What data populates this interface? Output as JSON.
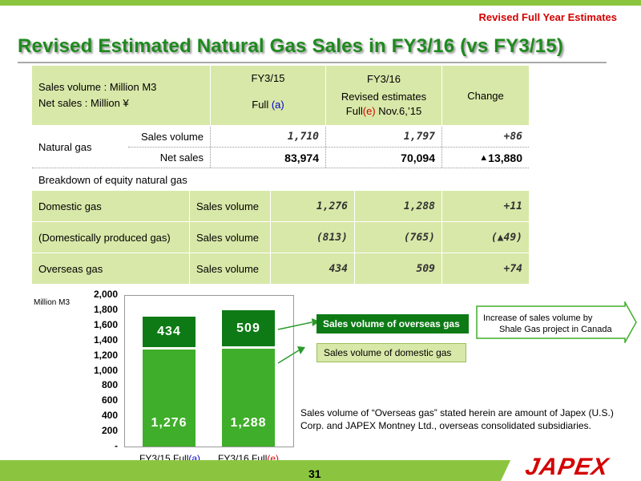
{
  "header": {
    "subtitle": "Revised Full Year Estimates",
    "title": "Revised Estimated Natural Gas Sales in FY3/16 (vs FY3/15)"
  },
  "table": {
    "unit_line1": "Sales volume : Million M3",
    "unit_line2": "Net sales : Million ¥",
    "col1_head": "FY3/15",
    "col1_sub_prefix": "Full ",
    "col1_sub_code": "(a)",
    "col2_head": "FY3/16",
    "col2_sub_line1": "Revised estimates",
    "col2_sub_prefix": "Full",
    "col2_sub_code": "(e)",
    "col2_sub_suffix": " Nov.6,’15",
    "col3_head": "Change",
    "natural_gas_label": "Natural gas",
    "ng_volume_label": "Sales volume",
    "ng_volume_fy15": "1,710",
    "ng_volume_fy16": "1,797",
    "ng_volume_change": "+86",
    "ng_sales_label": "Net sales",
    "ng_sales_fy15": "83,974",
    "ng_sales_fy16": "70,094",
    "ng_sales_change_mark": "▲",
    "ng_sales_change": "13,880",
    "breakdown_label": "Breakdown of equity natural gas",
    "rows": [
      {
        "name": "Domestic gas",
        "metric": "Sales volume",
        "fy15": "1,276",
        "fy16": "1,288",
        "change": "+11"
      },
      {
        "name": "(Domestically produced gas)",
        "metric": "Sales volume",
        "fy15": "(813)",
        "fy16": "(765)",
        "change": "(▲49)"
      },
      {
        "name": "Overseas gas",
        "metric": "Sales volume",
        "fy15": "434",
        "fy16": "509",
        "change": "+74"
      }
    ]
  },
  "chart_data": {
    "type": "bar",
    "stacked": true,
    "unit_label": "Million M3",
    "ylim": [
      0,
      2000
    ],
    "yticks": [
      "2,000",
      "1,800",
      "1,600",
      "1,400",
      "1,200",
      "1,000",
      "800",
      "600",
      "400",
      "200",
      "-"
    ],
    "categories": [
      {
        "prefix": "FY3/15 Full",
        "code": "(a)"
      },
      {
        "prefix": "FY3/16 Full",
        "code": "(e)"
      }
    ],
    "series": [
      {
        "name": "Sales volume of domestic gas",
        "values": [
          1276,
          1288
        ],
        "labels": [
          "1,276",
          "1,288"
        ],
        "color": "#3fae2a"
      },
      {
        "name": "Sales volume of overseas gas",
        "values": [
          434,
          509
        ],
        "labels": [
          "434",
          "509"
        ],
        "color": "#0e7a16"
      }
    ],
    "callout": {
      "line1": "Increase of sales volume by",
      "line2": "Shale Gas project in Canada"
    }
  },
  "note": {
    "line1": "Sales volume of “Overseas gas” stated herein are amount of Japex (U.S.)",
    "line2": "Corp. and JAPEX Montney Ltd., overseas consolidated subsidiaries."
  },
  "footer": {
    "page": "31",
    "logo": "JAPEX"
  },
  "colors": {
    "accent_green": "#8bc53f",
    "title_green": "#1e8a1e",
    "table_green": "#d8e8a8",
    "overseas_bar": "#0e7a16",
    "domestic_bar": "#3fae2a",
    "highlight_red": "#d40000",
    "highlight_blue": "#0000cc"
  }
}
